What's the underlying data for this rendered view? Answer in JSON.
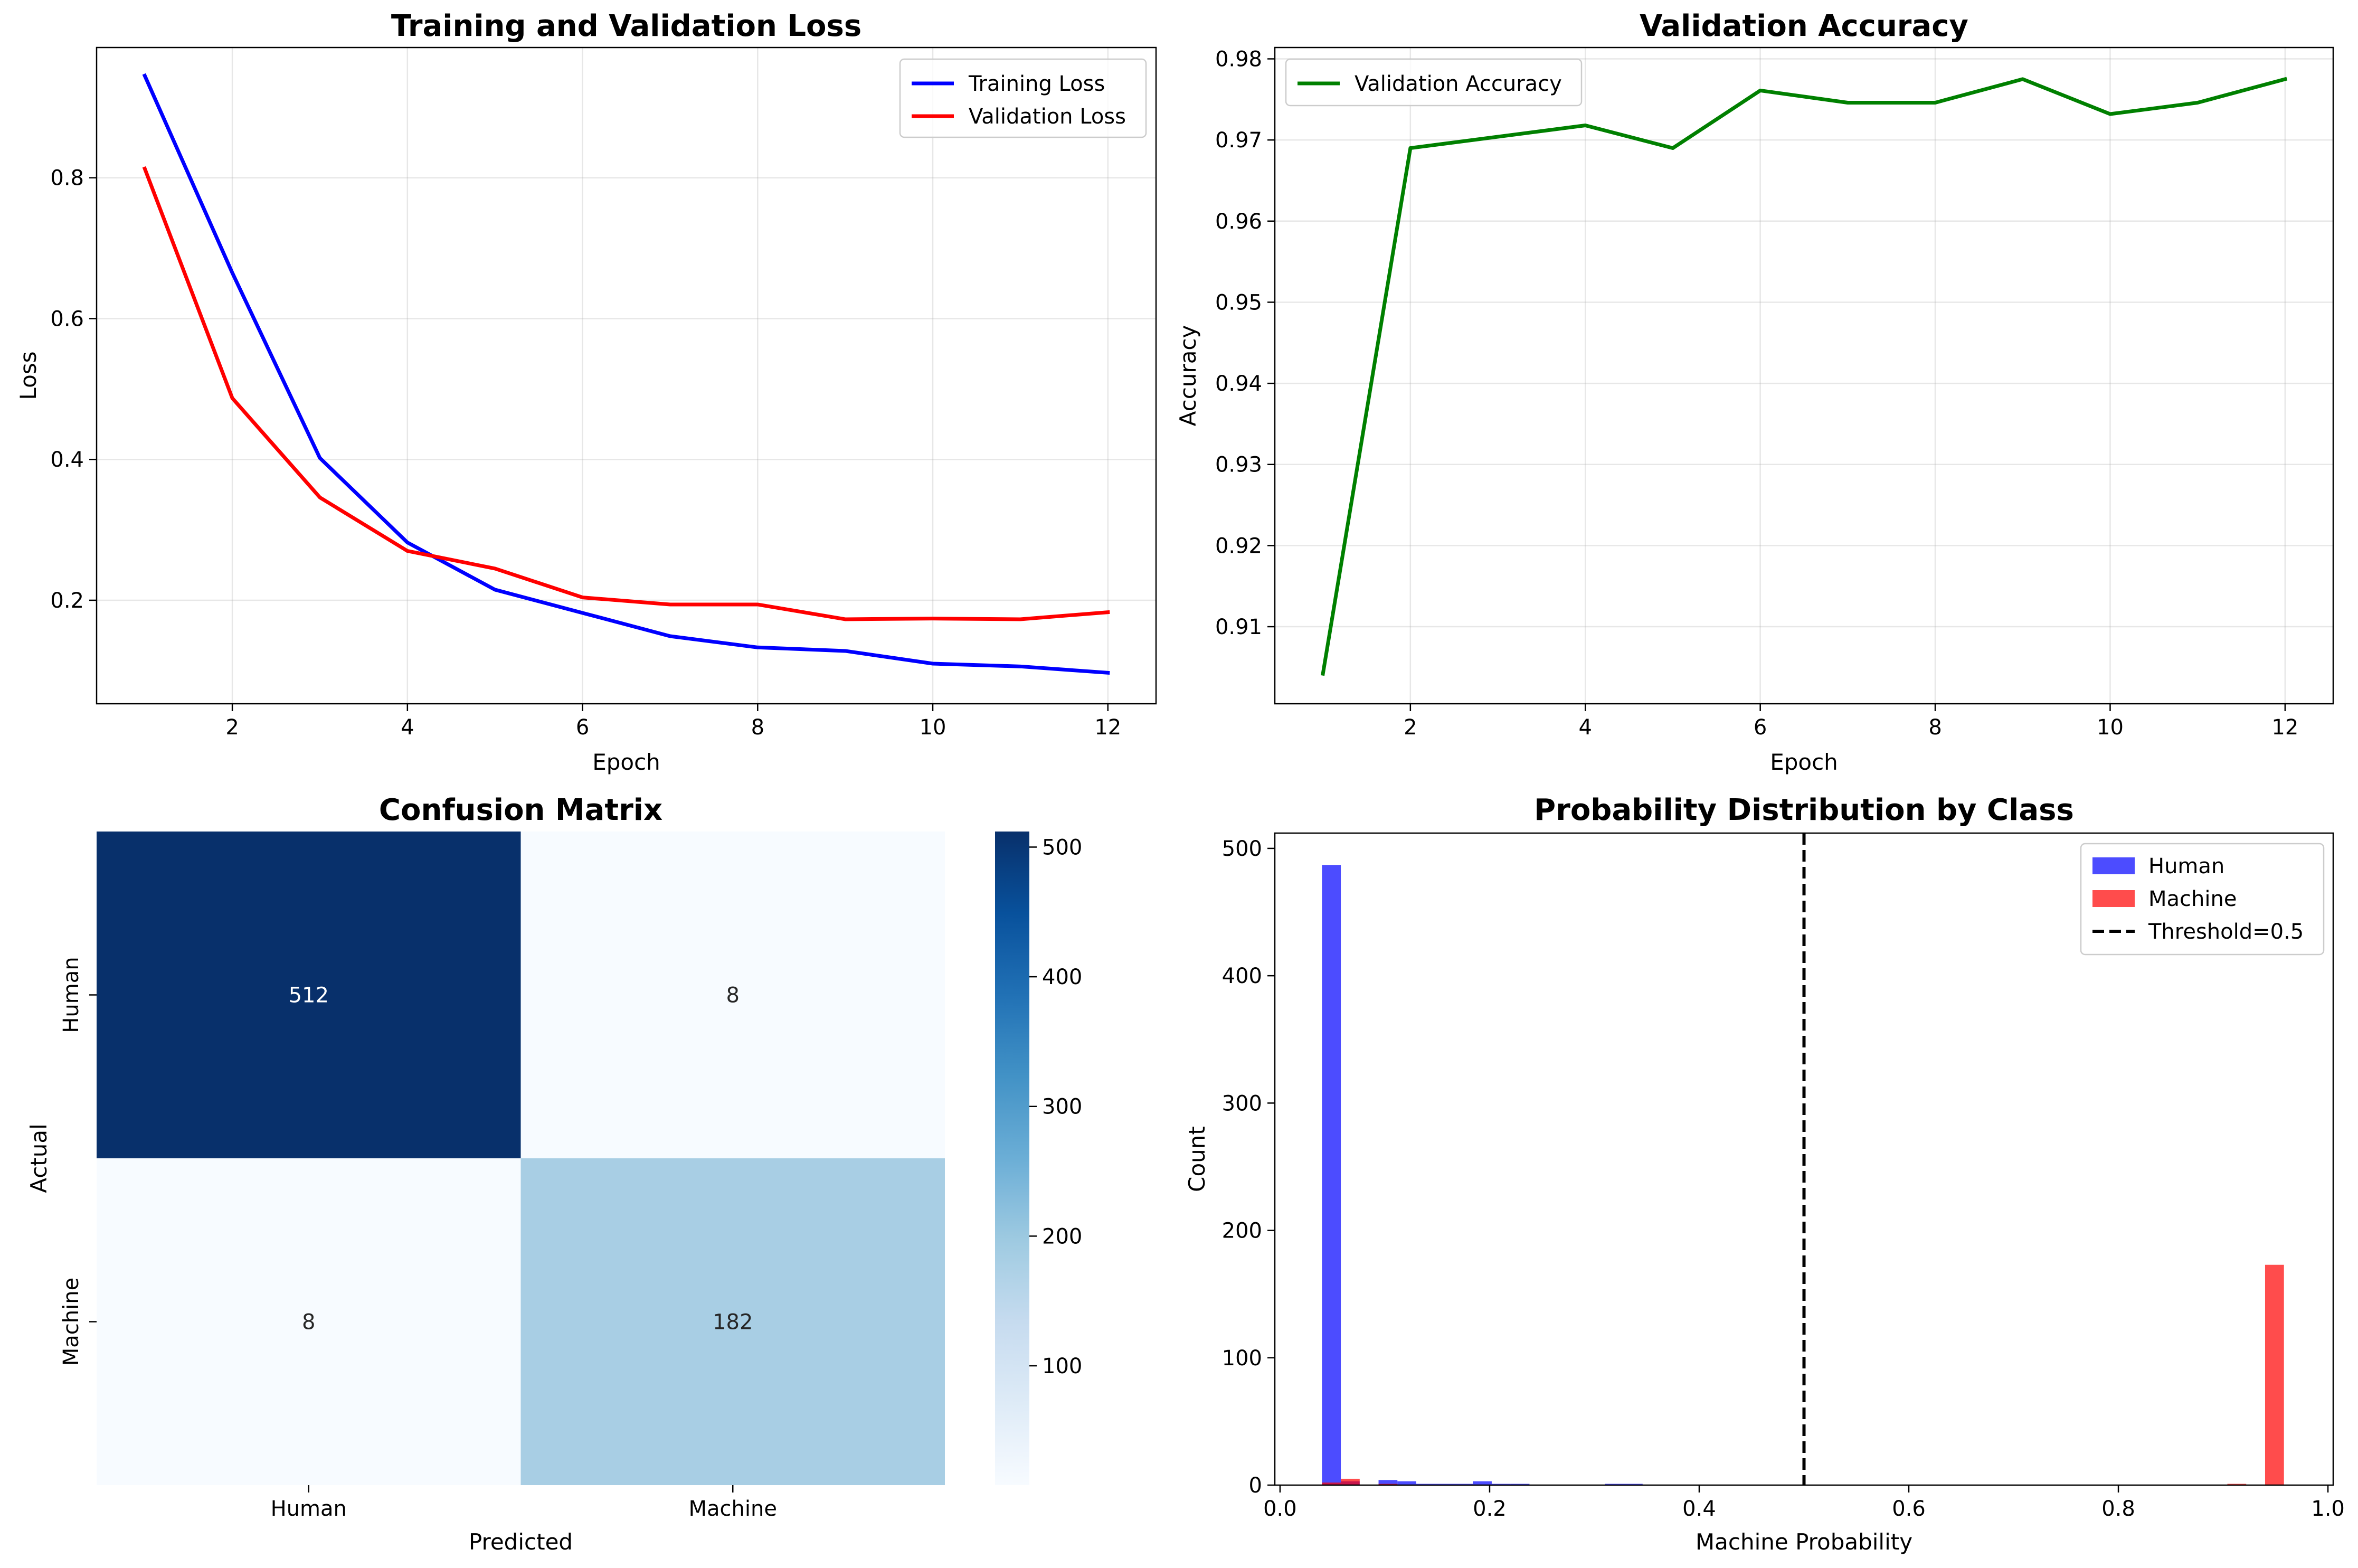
{
  "chart_data": [
    {
      "type": "line",
      "title": "Training and Validation Loss",
      "xlabel": "Epoch",
      "ylabel": "Loss",
      "x": [
        1,
        2,
        3,
        4,
        5,
        6,
        7,
        8,
        9,
        10,
        11,
        12
      ],
      "xlim": [
        0.45,
        12.55
      ],
      "ylim": [
        0.053,
        0.985
      ],
      "xticks": [
        2,
        4,
        6,
        8,
        10,
        12
      ],
      "yticks": [
        0.2,
        0.4,
        0.6,
        0.8
      ],
      "tick_labels_x": [
        "2",
        "4",
        "6",
        "8",
        "10",
        "12"
      ],
      "tick_labels_y": [
        "0.2",
        "0.4",
        "0.6",
        "0.8"
      ],
      "grid": true,
      "legend": "upper right",
      "series": [
        {
          "name": "Training Loss",
          "color": "#0000ff",
          "values": [
            0.945,
            0.665,
            0.402,
            0.282,
            0.215,
            0.182,
            0.149,
            0.133,
            0.128,
            0.11,
            0.106,
            0.097
          ]
        },
        {
          "name": "Validation Loss",
          "color": "#ff0000",
          "values": [
            0.813,
            0.487,
            0.346,
            0.27,
            0.245,
            0.204,
            0.194,
            0.194,
            0.173,
            0.174,
            0.173,
            0.183
          ]
        }
      ]
    },
    {
      "type": "line",
      "title": "Validation Accuracy",
      "xlabel": "Epoch",
      "ylabel": "Accuracy",
      "x": [
        1,
        2,
        3,
        4,
        5,
        6,
        7,
        8,
        9,
        10,
        11,
        12
      ],
      "xlim": [
        0.45,
        12.55
      ],
      "ylim": [
        0.9005,
        0.9814
      ],
      "xticks": [
        2,
        4,
        6,
        8,
        10,
        12
      ],
      "yticks": [
        0.91,
        0.92,
        0.93,
        0.94,
        0.95,
        0.96,
        0.97,
        0.98
      ],
      "tick_labels_x": [
        "2",
        "4",
        "6",
        "8",
        "10",
        "12"
      ],
      "tick_labels_y": [
        "0.91",
        "0.92",
        "0.93",
        "0.94",
        "0.95",
        "0.96",
        "0.97",
        "0.98"
      ],
      "grid": true,
      "legend": "upper left",
      "series": [
        {
          "name": "Validation Accuracy",
          "color": "#008000",
          "values": [
            0.9042,
            0.969,
            0.9704,
            0.9718,
            0.969,
            0.9761,
            0.9746,
            0.9746,
            0.9775,
            0.9732,
            0.9746,
            0.9775
          ]
        }
      ]
    },
    {
      "type": "heatmap",
      "title": "Confusion Matrix",
      "xlabel": "Predicted",
      "ylabel": "Actual",
      "row_labels": [
        "Human",
        "Machine"
      ],
      "col_labels": [
        "Human",
        "Machine"
      ],
      "values": [
        [
          512,
          8
        ],
        [
          8,
          182
        ]
      ],
      "cell_labels": [
        [
          "512",
          "8"
        ],
        [
          "8",
          "182"
        ]
      ],
      "colormap": "Blues",
      "colorbar_range": [
        8,
        512
      ],
      "colorbar_ticks": [
        100,
        200,
        300,
        400,
        500
      ],
      "colorbar_tick_labels": [
        "100",
        "200",
        "300",
        "400",
        "500"
      ]
    },
    {
      "type": "bar",
      "title": "Probability Distribution by Class",
      "xlabel": "Machine Probability",
      "ylabel": "Count",
      "xlim": [
        -0.005,
        1.005
      ],
      "ylim": [
        0,
        512
      ],
      "xticks": [
        0.0,
        0.2,
        0.4,
        0.6,
        0.8,
        1.0
      ],
      "yticks": [
        0,
        100,
        200,
        300,
        400,
        500
      ],
      "tick_labels_x": [
        "0.0",
        "0.2",
        "0.4",
        "0.6",
        "0.8",
        "1.0"
      ],
      "tick_labels_y": [
        "0",
        "100",
        "200",
        "300",
        "400",
        "500"
      ],
      "legend": "upper right",
      "bins": [
        0.04,
        0.058,
        0.076,
        0.094,
        0.112,
        0.13,
        0.148,
        0.166,
        0.184,
        0.202,
        0.22,
        0.238,
        0.256,
        0.274,
        0.292,
        0.31,
        0.328,
        0.346,
        0.364,
        0.382,
        0.4,
        0.418,
        0.436,
        0.454,
        0.472,
        0.49,
        0.508,
        0.526,
        0.544,
        0.562,
        0.58,
        0.598,
        0.616,
        0.634,
        0.652,
        0.67,
        0.688,
        0.706,
        0.724,
        0.742,
        0.76,
        0.778,
        0.796,
        0.814,
        0.832,
        0.85,
        0.868,
        0.886,
        0.904,
        0.922,
        0.94,
        0.958
      ],
      "series": [
        {
          "name": "Human",
          "color": "#0000ff",
          "alpha": 0.7,
          "counts": [
            487,
            3,
            0,
            4,
            3,
            1,
            1,
            1,
            3,
            1,
            1,
            0,
            0,
            0,
            0,
            1,
            1,
            0,
            0,
            0,
            0,
            0,
            0,
            0,
            0,
            0,
            0,
            0,
            0,
            0,
            0,
            0,
            0,
            0,
            0,
            0,
            0,
            0,
            0,
            0,
            0,
            0,
            0,
            0,
            0,
            0,
            0,
            0,
            0,
            0,
            0
          ]
        },
        {
          "name": "Machine",
          "color": "#ff0000",
          "alpha": 0.7,
          "counts": [
            2,
            5,
            0,
            1,
            0,
            0,
            0,
            0,
            0,
            0,
            0,
            0,
            0,
            0,
            0,
            0,
            0,
            0,
            0,
            0,
            0,
            0,
            0,
            0,
            0,
            0,
            0,
            0,
            0,
            0,
            0,
            0,
            0,
            0,
            0,
            0,
            0,
            0,
            0,
            0,
            0,
            0,
            0,
            0,
            0,
            0,
            0,
            0,
            1,
            0,
            173
          ]
        }
      ],
      "threshold": {
        "name": "Threshold=0.5",
        "value": 0.5
      }
    }
  ]
}
